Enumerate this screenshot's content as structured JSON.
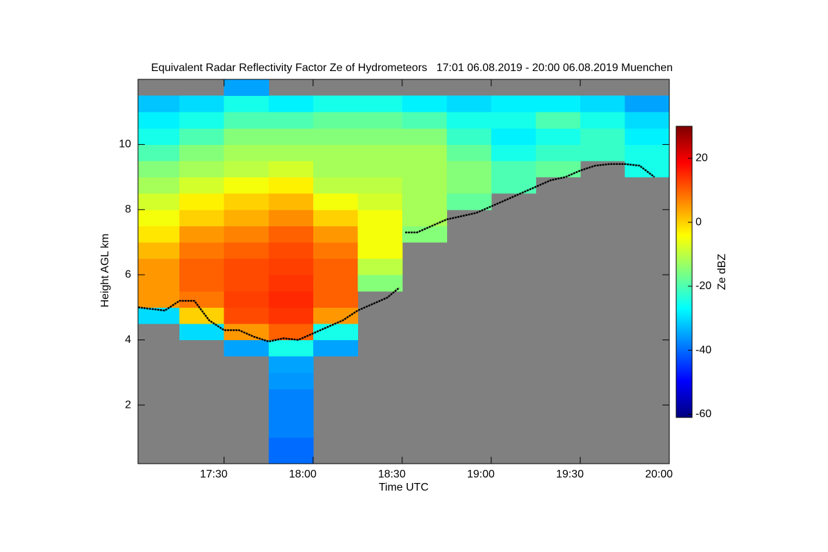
{
  "chart_data": {
    "type": "heatmap",
    "title": "Equivalent Radar Reflectivity Factor Ze of Hydrometeors   17:01 06.08.2019 - 20:00 06.08.2019 Muenchen",
    "x_label": "Time UTC",
    "y_label": "Height AGL km",
    "xlim": [
      1021,
      1200
    ],
    "xticks": [
      {
        "value": 1050,
        "label": "17:30"
      },
      {
        "value": 1080,
        "label": "18:00"
      },
      {
        "value": 1110,
        "label": "18:30"
      },
      {
        "value": 1140,
        "label": "19:00"
      },
      {
        "value": 1170,
        "label": "19:30"
      },
      {
        "value": 1200,
        "label": "20:00"
      }
    ],
    "ylim": [
      0.2,
      12
    ],
    "yticks": [
      2,
      4,
      6,
      8,
      10
    ],
    "background": "#808080",
    "x_edges": [
      1021,
      1035,
      1050,
      1065,
      1080,
      1095,
      1110,
      1125,
      1140,
      1155,
      1170,
      1185,
      1200
    ],
    "y_edges": [
      0.2,
      0.5,
      1,
      1.5,
      2,
      2.5,
      3,
      3.5,
      4,
      4.5,
      5,
      5.5,
      6,
      6.5,
      7,
      7.5,
      8,
      8.5,
      9,
      9.5,
      10,
      10.5,
      11,
      11.5,
      12
    ],
    "z": [
      [
        null,
        null,
        null,
        -40,
        null,
        null,
        null,
        null,
        null,
        null,
        null,
        null
      ],
      [
        null,
        null,
        null,
        -40,
        null,
        null,
        null,
        null,
        null,
        null,
        null,
        null
      ],
      [
        null,
        null,
        null,
        -38,
        null,
        null,
        null,
        null,
        null,
        null,
        null,
        null
      ],
      [
        null,
        null,
        null,
        -38,
        null,
        null,
        null,
        null,
        null,
        null,
        null,
        null
      ],
      [
        null,
        null,
        null,
        -38,
        null,
        null,
        null,
        null,
        null,
        null,
        null,
        null
      ],
      [
        null,
        null,
        null,
        -36,
        null,
        null,
        null,
        null,
        null,
        null,
        null,
        null
      ],
      [
        null,
        null,
        null,
        -35,
        null,
        null,
        null,
        null,
        null,
        null,
        null,
        null
      ],
      [
        null,
        null,
        -35,
        -25,
        -35,
        null,
        null,
        null,
        null,
        null,
        null,
        null
      ],
      [
        null,
        -30,
        5,
        10,
        -25,
        null,
        null,
        null,
        null,
        null,
        null,
        null
      ],
      [
        -30,
        0,
        12,
        14,
        5,
        null,
        null,
        null,
        null,
        null,
        null,
        null
      ],
      [
        5,
        8,
        13,
        15,
        10,
        null,
        null,
        null,
        null,
        null,
        null,
        null
      ],
      [
        5,
        10,
        12,
        14,
        10,
        -15,
        null,
        null,
        null,
        null,
        null,
        null
      ],
      [
        5,
        10,
        12,
        13,
        10,
        -10,
        null,
        null,
        null,
        null,
        null,
        null
      ],
      [
        2,
        8,
        10,
        12,
        8,
        -5,
        null,
        null,
        null,
        null,
        null,
        null
      ],
      [
        -2,
        5,
        7,
        10,
        5,
        -5,
        -15,
        null,
        null,
        null,
        null,
        null
      ],
      [
        -5,
        0,
        3,
        6,
        0,
        -5,
        -12,
        null,
        null,
        null,
        null,
        null
      ],
      [
        -8,
        -3,
        0,
        2,
        -5,
        -8,
        -12,
        -18,
        null,
        null,
        null,
        null
      ],
      [
        -12,
        -8,
        -5,
        -3,
        -10,
        -10,
        -12,
        -15,
        -20,
        null,
        null,
        null
      ],
      [
        -15,
        -12,
        -10,
        -8,
        -12,
        -12,
        -12,
        -15,
        -20,
        -18,
        null,
        -25
      ],
      [
        -20,
        -15,
        -12,
        -12,
        -12,
        -12,
        -12,
        -18,
        -25,
        -22,
        -22,
        -25
      ],
      [
        -25,
        -20,
        -15,
        -15,
        -15,
        -15,
        -15,
        -22,
        -28,
        -25,
        -22,
        -28
      ],
      [
        -28,
        -25,
        -20,
        -20,
        -18,
        -18,
        -20,
        -25,
        -25,
        -20,
        -25,
        -30
      ],
      [
        -32,
        -30,
        -25,
        -28,
        -25,
        -25,
        -28,
        -30,
        -28,
        -28,
        -30,
        -35
      ],
      [
        null,
        null,
        -35,
        null,
        null,
        null,
        null,
        null,
        null,
        null,
        null,
        null
      ]
    ],
    "line": {
      "color": "#000000",
      "x": [
        1021,
        1030,
        1035,
        1040,
        1045,
        1050,
        1055,
        1060,
        1065,
        1070,
        1075,
        1080,
        1085,
        1090,
        1095,
        1100,
        1105,
        1109,
        1110,
        1111,
        1115,
        1120,
        1125,
        1130,
        1135,
        1140,
        1145,
        1150,
        1155,
        1160,
        1165,
        1170,
        1175,
        1180,
        1185,
        1190,
        1195
      ],
      "y": [
        5.0,
        4.9,
        5.2,
        5.2,
        4.6,
        4.3,
        4.3,
        4.1,
        3.95,
        4.05,
        4.0,
        4.2,
        4.4,
        4.6,
        4.9,
        5.1,
        5.3,
        5.6,
        null,
        7.3,
        7.3,
        7.5,
        7.7,
        7.8,
        7.9,
        8.1,
        8.3,
        8.5,
        8.7,
        8.9,
        9.0,
        9.2,
        9.35,
        9.4,
        9.4,
        9.35,
        9.0
      ]
    },
    "clim": [
      -61,
      30
    ],
    "colormap": [
      "#00007f",
      "#0000ff",
      "#007fff",
      "#00ffff",
      "#7fff7f",
      "#ffff00",
      "#ff7f00",
      "#ff0000",
      "#7f0000"
    ],
    "colorbar_label": "Ze dBZ",
    "colorbar_ticks": [
      -60,
      -40,
      -20,
      0,
      20
    ]
  }
}
